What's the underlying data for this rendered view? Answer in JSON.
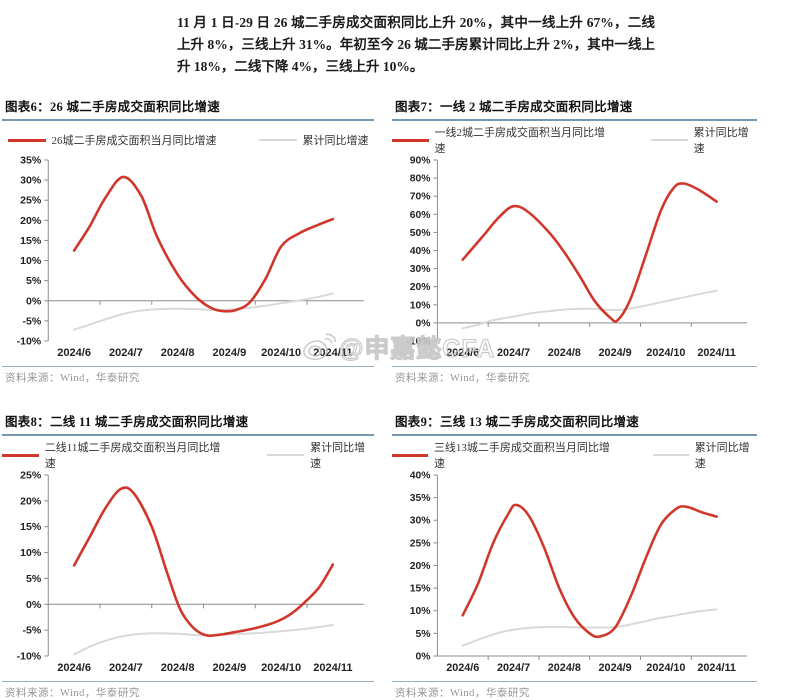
{
  "intro_paragraph": "11 月 1 日-29 日 26 城二手房成交面积同比上升 20%，其中一线上升 67%，二线上升 8%，三线上升 31%。年初至今 26 城二手房累计同比上升 2%，其中一线上升 18%，二线下降 4%，三线上升 10%。",
  "watermark": {
    "text": "@申嘉懿CFA",
    "icon": "weibo-icon"
  },
  "colors": {
    "red": "#d0372a",
    "gray_line": "#d9d9d9",
    "axis": "#8c8c8c",
    "rule_blue": "#7597b0",
    "source_text": "#979797"
  },
  "chart_data": [
    {
      "type": "line",
      "fig_label": "图表6：",
      "title": "26 城二手房成交面积同比增速",
      "legend": [
        {
          "name": "26城二手房成交面积当月同比增速",
          "color": "red"
        },
        {
          "name": "累计同比增速",
          "color": "gray"
        }
      ],
      "x_labels": [
        "2024/6",
        "2024/7",
        "2024/8",
        "2024/9",
        "2024/10",
        "2024/11"
      ],
      "ylim": [
        -10,
        35
      ],
      "ytick_step": 5,
      "series": [
        {
          "name": "26城二手房成交面积当月同比增速",
          "color": "red",
          "width": 2.6,
          "points": [
            [
              6,
              12.5
            ],
            [
              6.3,
              18.5
            ],
            [
              6.6,
              25.5
            ],
            [
              6.95,
              30.8
            ],
            [
              7.3,
              26
            ],
            [
              7.6,
              16
            ],
            [
              8,
              6.5
            ],
            [
              8.35,
              1
            ],
            [
              8.65,
              -1.8
            ],
            [
              8.9,
              -2.6
            ],
            [
              9.15,
              -2.2
            ],
            [
              9.4,
              -0.3
            ],
            [
              9.7,
              5.5
            ],
            [
              10,
              13.5
            ],
            [
              10.35,
              16.8
            ],
            [
              10.7,
              18.8
            ],
            [
              11,
              20.3
            ]
          ]
        },
        {
          "name": "累计同比增速",
          "color": "gray",
          "width": 2,
          "points": [
            [
              6,
              -7.2
            ],
            [
              6.4,
              -5.5
            ],
            [
              6.8,
              -3.8
            ],
            [
              7.2,
              -2.6
            ],
            [
              7.6,
              -2.1
            ],
            [
              8,
              -2
            ],
            [
              8.4,
              -2.1
            ],
            [
              8.8,
              -2.3
            ],
            [
              9.2,
              -2
            ],
            [
              9.6,
              -1.4
            ],
            [
              10,
              -0.6
            ],
            [
              10.4,
              0.2
            ],
            [
              10.7,
              0.9
            ],
            [
              11,
              1.8
            ]
          ]
        }
      ],
      "source": "资料来源：Wind，华泰研究"
    },
    {
      "type": "line",
      "fig_label": "图表7：",
      "title": "一线 2 城二手房成交面积同比增速",
      "legend": [
        {
          "name": "一线2城二手房成交面积当月同比增速",
          "color": "red"
        },
        {
          "name": "累计同比增速",
          "color": "gray"
        }
      ],
      "x_labels": [
        "2024/6",
        "2024/7",
        "2024/8",
        "2024/9",
        "2024/10",
        "2024/11"
      ],
      "ylim": [
        -10,
        90
      ],
      "ytick_step": 10,
      "series": [
        {
          "name": "一线2城二手房成交面积当月同比增速",
          "color": "red",
          "width": 2.6,
          "points": [
            [
              6,
              35
            ],
            [
              6.4,
              48
            ],
            [
              6.7,
              58
            ],
            [
              7.0,
              64.5
            ],
            [
              7.3,
              61
            ],
            [
              7.7,
              50
            ],
            [
              8.0,
              39
            ],
            [
              8.3,
              26
            ],
            [
              8.6,
              12
            ],
            [
              8.9,
              3
            ],
            [
              9.05,
              1.5
            ],
            [
              9.3,
              13
            ],
            [
              9.6,
              37
            ],
            [
              9.9,
              62
            ],
            [
              10.15,
              74.5
            ],
            [
              10.35,
              77
            ],
            [
              10.65,
              73.5
            ],
            [
              11,
              67
            ]
          ]
        },
        {
          "name": "累计同比增速",
          "color": "gray",
          "width": 2,
          "points": [
            [
              6,
              -3
            ],
            [
              6.3,
              -1
            ],
            [
              6.6,
              1.5
            ],
            [
              7,
              3.5
            ],
            [
              7.4,
              5.5
            ],
            [
              7.8,
              6.8
            ],
            [
              8.1,
              7.5
            ],
            [
              8.5,
              7.8
            ],
            [
              8.8,
              7.3
            ],
            [
              9.1,
              7.2
            ],
            [
              9.5,
              9
            ],
            [
              10,
              12
            ],
            [
              10.5,
              15
            ],
            [
              11,
              17.8
            ]
          ]
        }
      ],
      "source": "资料来源：Wind，华泰研究"
    },
    {
      "type": "line",
      "fig_label": "图表8：",
      "title": "二线 11 城二手房成交面积同比增速",
      "legend": [
        {
          "name": "二线11城二手房成交面积当月同比增速",
          "color": "red"
        },
        {
          "name": "累计同比增速",
          "color": "gray"
        }
      ],
      "x_labels": [
        "2024/6",
        "2024/7",
        "2024/8",
        "2024/9",
        "2024/10",
        "2024/11"
      ],
      "ylim": [
        -10,
        25
      ],
      "ytick_step": 5,
      "series": [
        {
          "name": "二线11城二手房成交面积当月同比增速",
          "color": "red",
          "width": 2.6,
          "points": [
            [
              6,
              7.5
            ],
            [
              6.3,
              13
            ],
            [
              6.6,
              18.5
            ],
            [
              6.9,
              22.3
            ],
            [
              7.15,
              21.5
            ],
            [
              7.5,
              15
            ],
            [
              7.8,
              6
            ],
            [
              8.05,
              -1
            ],
            [
              8.3,
              -4.5
            ],
            [
              8.55,
              -6
            ],
            [
              8.8,
              -5.9
            ],
            [
              9.1,
              -5.4
            ],
            [
              9.5,
              -4.6
            ],
            [
              9.9,
              -3.4
            ],
            [
              10.2,
              -1.8
            ],
            [
              10.5,
              0.8
            ],
            [
              10.75,
              3.5
            ],
            [
              11,
              7.7
            ]
          ]
        },
        {
          "name": "累计同比增速",
          "color": "gray",
          "width": 2,
          "points": [
            [
              6,
              -9.7
            ],
            [
              6.4,
              -7.8
            ],
            [
              6.8,
              -6.5
            ],
            [
              7.2,
              -5.8
            ],
            [
              7.6,
              -5.6
            ],
            [
              8,
              -5.7
            ],
            [
              8.5,
              -6
            ],
            [
              9,
              -5.8
            ],
            [
              9.5,
              -5.6
            ],
            [
              10,
              -5.2
            ],
            [
              10.5,
              -4.7
            ],
            [
              11,
              -4
            ]
          ]
        }
      ],
      "source": "资料来源：Wind，华泰研究"
    },
    {
      "type": "line",
      "fig_label": "图表9：",
      "title": "三线 13 城二手房成交面积同比增速",
      "legend": [
        {
          "name": "三线13城二手房成交面积当月同比增速",
          "color": "red"
        },
        {
          "name": "累计同比增速",
          "color": "gray"
        }
      ],
      "x_labels": [
        "2024/6",
        "2024/7",
        "2024/8",
        "2024/9",
        "2024/10",
        "2024/11"
      ],
      "ylim": [
        0,
        40
      ],
      "ytick_step": 5,
      "series": [
        {
          "name": "三线13城二手房成交面积当月同比增速",
          "color": "red",
          "width": 2.6,
          "points": [
            [
              6,
              9
            ],
            [
              6.3,
              16
            ],
            [
              6.6,
              25
            ],
            [
              6.9,
              31.5
            ],
            [
              7.05,
              33.4
            ],
            [
              7.3,
              31
            ],
            [
              7.6,
              24
            ],
            [
              7.9,
              15
            ],
            [
              8.2,
              8.5
            ],
            [
              8.5,
              5
            ],
            [
              8.7,
              4.3
            ],
            [
              9,
              6.3
            ],
            [
              9.3,
              13
            ],
            [
              9.6,
              21.5
            ],
            [
              9.9,
              29
            ],
            [
              10.2,
              32.5
            ],
            [
              10.4,
              33
            ],
            [
              10.7,
              31.8
            ],
            [
              11,
              30.8
            ]
          ]
        },
        {
          "name": "累计同比增速",
          "color": "gray",
          "width": 2,
          "points": [
            [
              6,
              2.3
            ],
            [
              6.4,
              4
            ],
            [
              6.8,
              5.4
            ],
            [
              7.2,
              6.1
            ],
            [
              7.6,
              6.4
            ],
            [
              8,
              6.4
            ],
            [
              8.5,
              6.3
            ],
            [
              9,
              6.4
            ],
            [
              9.4,
              7.2
            ],
            [
              9.8,
              8.2
            ],
            [
              10.2,
              9
            ],
            [
              10.6,
              9.8
            ],
            [
              11,
              10.3
            ]
          ]
        }
      ],
      "source": "资料来源：Wind，华泰研究"
    }
  ]
}
